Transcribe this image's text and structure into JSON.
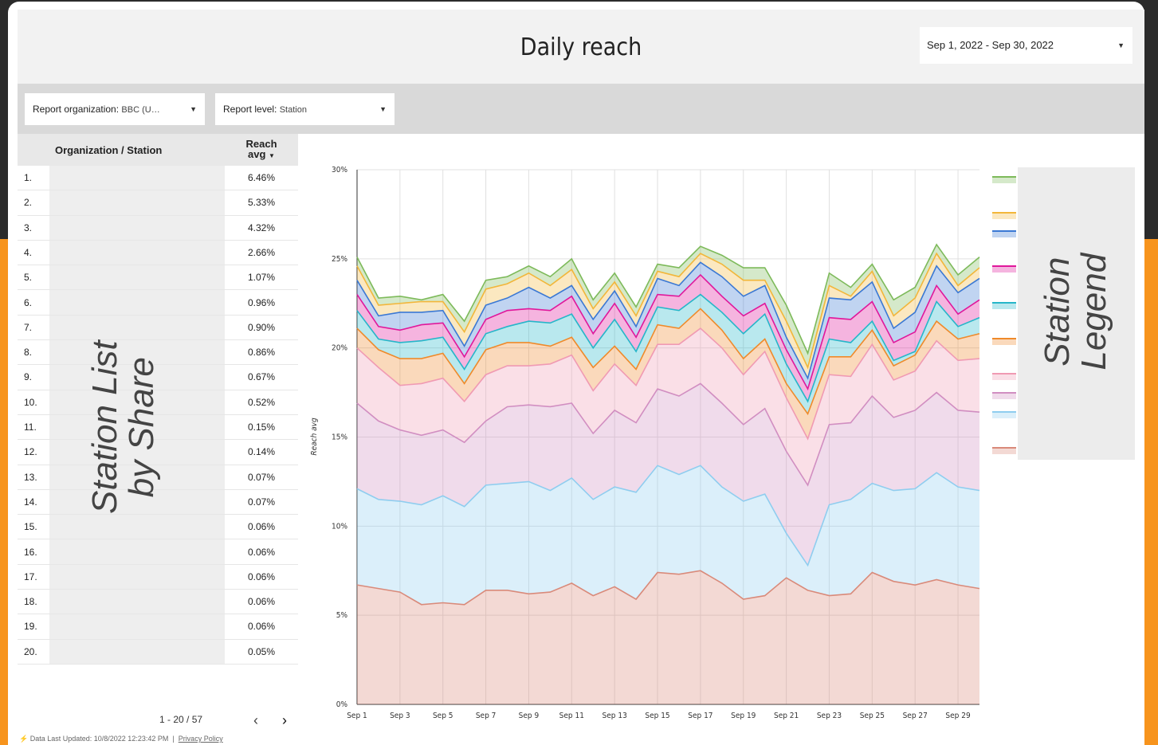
{
  "header": {
    "title": "Daily reach",
    "date_range": "Sep 1, 2022 - Sep 30, 2022"
  },
  "filters": [
    {
      "label": "Report organization:",
      "value": "BBC (U…"
    },
    {
      "label": "Report level:",
      "value": "Station"
    }
  ],
  "table": {
    "columns": [
      "Organization / Station",
      "Reach avg"
    ],
    "rows": [
      [
        "1.",
        "6.46%"
      ],
      [
        "2.",
        "5.33%"
      ],
      [
        "3.",
        "4.32%"
      ],
      [
        "4.",
        "2.66%"
      ],
      [
        "5.",
        "1.07%"
      ],
      [
        "6.",
        "0.96%"
      ],
      [
        "7.",
        "0.90%"
      ],
      [
        "8.",
        "0.86%"
      ],
      [
        "9.",
        "0.67%"
      ],
      [
        "10.",
        "0.52%"
      ],
      [
        "11.",
        "0.15%"
      ],
      [
        "12.",
        "0.14%"
      ],
      [
        "13.",
        "0.07%"
      ],
      [
        "14.",
        "0.07%"
      ],
      [
        "15.",
        "0.06%"
      ],
      [
        "16.",
        "0.06%"
      ],
      [
        "17.",
        "0.06%"
      ],
      [
        "18.",
        "0.06%"
      ],
      [
        "19.",
        "0.06%"
      ],
      [
        "20.",
        "0.05%"
      ]
    ]
  },
  "pagination": "1 - 20 / 57",
  "placeholders": {
    "station_list": "Station List by Share",
    "station_legend": "Station Legend"
  },
  "footer": {
    "updated": "Data Last Updated: 10/8/2022 12:23:42 PM",
    "privacy": "Privacy Policy"
  },
  "chart_data": {
    "type": "area",
    "stacked": true,
    "y_label": "Reach avg",
    "categories": [
      "Sep 1",
      null,
      "Sep 3",
      null,
      "Sep 5",
      null,
      "Sep 7",
      null,
      "Sep 9",
      null,
      "Sep 11",
      null,
      "Sep 13",
      null,
      "Sep 15",
      null,
      "Sep 17",
      null,
      "Sep 19",
      null,
      "Sep 21",
      null,
      "Sep 23",
      null,
      "Sep 25",
      null,
      "Sep 27",
      null,
      "Sep 29",
      null
    ],
    "ylim": [
      0,
      30
    ],
    "yticks": [
      {
        "value": 0,
        "label": "0%"
      },
      {
        "value": 5,
        "label": "5%"
      },
      {
        "value": 10,
        "label": "10%"
      },
      {
        "value": 15,
        "label": "15%"
      },
      {
        "value": 20,
        "label": "20%"
      },
      {
        "value": 25,
        "label": "25%"
      },
      {
        "value": 30,
        "label": "30%"
      }
    ],
    "grid": true,
    "series": [
      {
        "color": "#d98a7a",
        "values": [
          6.7,
          6.5,
          6.3,
          5.6,
          5.7,
          5.6,
          6.4,
          6.4,
          6.2,
          6.3,
          6.8,
          6.1,
          6.6,
          5.9,
          7.4,
          7.3,
          7.5,
          6.8,
          5.9,
          6.1,
          7.1,
          6.4,
          6.1,
          6.2,
          7.4,
          6.9,
          6.7,
          7.0,
          6.7,
          6.5
        ]
      },
      {
        "color": "#8fcdef",
        "values": [
          5.4,
          5.0,
          5.1,
          5.6,
          6.0,
          5.5,
          5.9,
          6.0,
          6.3,
          5.7,
          5.9,
          5.4,
          5.6,
          6.0,
          6.0,
          5.6,
          5.9,
          5.4,
          5.5,
          5.7,
          2.5,
          1.4,
          5.1,
          5.3,
          5.0,
          5.1,
          5.4,
          6.0,
          5.5,
          5.5
        ]
      },
      {
        "color": "#d18ec1",
        "values": [
          4.8,
          4.4,
          4.0,
          3.9,
          3.7,
          3.6,
          3.6,
          4.3,
          4.3,
          4.7,
          4.2,
          3.7,
          4.3,
          3.9,
          4.3,
          4.4,
          4.6,
          4.7,
          4.3,
          4.8,
          4.6,
          4.5,
          4.5,
          4.3,
          4.9,
          4.1,
          4.4,
          4.5,
          4.3,
          4.4
        ]
      },
      {
        "color": "#f09ab3",
        "values": [
          3.1,
          3.0,
          2.5,
          2.9,
          2.9,
          2.3,
          2.6,
          2.3,
          2.2,
          2.4,
          2.7,
          2.4,
          2.6,
          2.1,
          2.5,
          2.9,
          3.1,
          3.1,
          2.8,
          3.2,
          3.0,
          2.6,
          2.8,
          2.6,
          2.9,
          2.1,
          2.2,
          2.9,
          2.8,
          3.0
        ]
      },
      {
        "color": "#ef8a2a",
        "values": [
          1.1,
          1.0,
          1.5,
          1.4,
          1.4,
          1.0,
          1.4,
          1.3,
          1.3,
          1.0,
          1.0,
          1.3,
          1.0,
          0.9,
          1.1,
          0.9,
          1.1,
          1.0,
          0.9,
          0.7,
          0.8,
          1.4,
          1.0,
          1.1,
          0.8,
          0.8,
          0.9,
          1.1,
          1.2,
          1.4
        ]
      },
      {
        "color": "#26b6c9",
        "values": [
          1.0,
          0.6,
          0.9,
          1.0,
          0.9,
          0.8,
          0.9,
          0.9,
          1.2,
          1.3,
          1.3,
          1.1,
          1.5,
          1.0,
          1.0,
          1.0,
          0.8,
          1.0,
          1.4,
          1.4,
          1.1,
          0.7,
          1.0,
          0.8,
          0.5,
          0.3,
          0.2,
          1.1,
          0.7,
          0.9
        ]
      },
      {
        "color": "#e0179b",
        "values": [
          0.9,
          0.7,
          0.7,
          0.9,
          0.8,
          0.7,
          0.8,
          0.9,
          0.7,
          0.7,
          1.0,
          0.8,
          0.9,
          0.8,
          0.7,
          0.8,
          1.1,
          0.9,
          1.0,
          0.6,
          0.8,
          0.7,
          1.2,
          1.3,
          1.1,
          1.0,
          1.1,
          0.9,
          0.7,
          1.0
        ]
      },
      {
        "color": "#3a78d4",
        "values": [
          0.8,
          0.6,
          1.0,
          0.7,
          0.7,
          0.6,
          0.8,
          0.7,
          1.2,
          0.7,
          0.6,
          0.8,
          0.7,
          0.6,
          0.9,
          0.6,
          0.7,
          1.1,
          1.1,
          1.0,
          0.7,
          0.6,
          1.1,
          1.1,
          1.1,
          0.8,
          1.1,
          1.1,
          1.2,
          1.2
        ]
      },
      {
        "color": "#f2b63a",
        "values": [
          0.8,
          0.6,
          0.5,
          0.6,
          0.5,
          0.8,
          0.9,
          0.8,
          0.8,
          0.7,
          0.9,
          0.6,
          0.5,
          0.6,
          0.4,
          0.5,
          0.5,
          0.7,
          0.9,
          0.3,
          0.9,
          0.6,
          0.7,
          0.2,
          0.6,
          0.7,
          0.8,
          0.7,
          0.4,
          0.6
        ]
      },
      {
        "color": "#7dba5a",
        "values": [
          0.5,
          0.4,
          0.4,
          0.1,
          0.4,
          0.6,
          0.5,
          0.4,
          0.4,
          0.5,
          0.6,
          0.5,
          0.5,
          0.5,
          0.4,
          0.5,
          0.4,
          0.5,
          0.7,
          0.7,
          0.9,
          0.8,
          0.7,
          0.5,
          0.4,
          0.9,
          0.6,
          0.5,
          0.6,
          0.6
        ]
      }
    ]
  }
}
